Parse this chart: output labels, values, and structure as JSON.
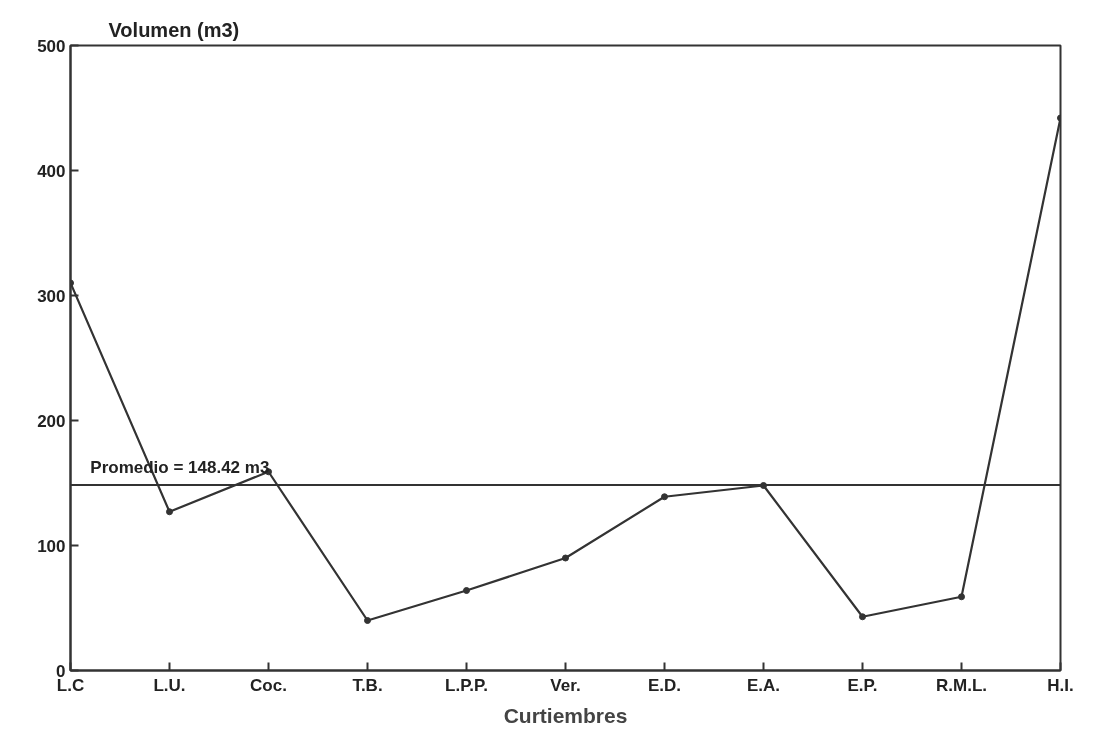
{
  "chart_data": {
    "type": "line",
    "xlabel": "Curtiembres",
    "ylabel": "Volumen (m3)",
    "categories": [
      "L.C",
      "L.U.",
      "Coc.",
      "T.B.",
      "L.P.P.",
      "Ver.",
      "E.D.",
      "E.A.",
      "E.P.",
      "R.M.L.",
      "H.I."
    ],
    "series": [
      {
        "color": "#333333",
        "values": [
          310,
          127,
          159,
          40,
          64,
          90,
          139,
          148,
          43,
          59,
          442
        ]
      }
    ],
    "ylim": [
      0,
      500
    ],
    "yticks": [
      0,
      100,
      200,
      300,
      400,
      500
    ],
    "ref_lines": [
      {
        "axis": "y",
        "value": 148.42,
        "label": "Promedio = 148.42 m3",
        "color": "#333333",
        "line_style": "solid"
      }
    ],
    "marker": "circle",
    "line_style": "solid",
    "grid": false
  }
}
